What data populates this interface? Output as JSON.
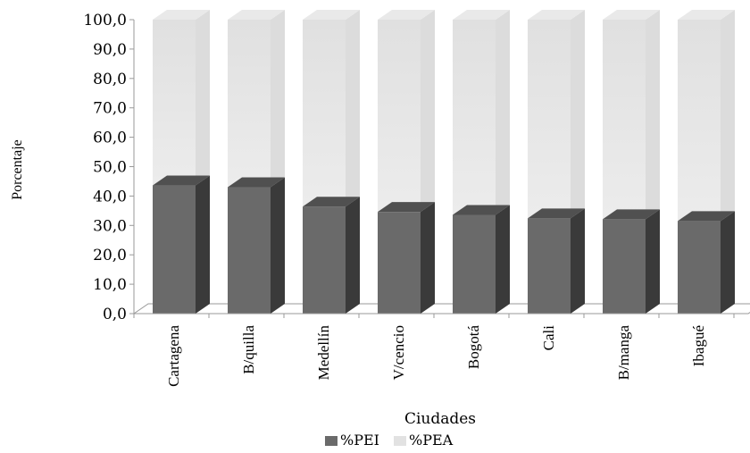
{
  "chart_data": {
    "type": "bar",
    "stacked": true,
    "three_d": true,
    "categories": [
      "Cartagena",
      "B/quilla",
      "Medellín",
      "V/cencio",
      "Bogotá",
      "Cali",
      "B/manga",
      "Ibagué"
    ],
    "series": [
      {
        "name": "%PEI",
        "values": [
          43.6,
          43.0,
          36.4,
          34.6,
          33.6,
          32.4,
          32.1,
          31.5
        ],
        "color": "#6a6a6a"
      },
      {
        "name": "%PEA",
        "values": [
          56.4,
          57.0,
          63.6,
          65.4,
          66.4,
          67.6,
          67.9,
          68.5
        ],
        "color": "#e2e2e2"
      }
    ],
    "xlabel": "Ciudades",
    "ylabel": "Porcentaje",
    "ylim": [
      0,
      100
    ],
    "yticks": [
      "0,0",
      "10,0",
      "20,0",
      "30,0",
      "40,0",
      "50,0",
      "60,0",
      "70,0",
      "80,0",
      "90,0",
      "100,0"
    ],
    "legend_position": "bottom",
    "grid": false
  }
}
